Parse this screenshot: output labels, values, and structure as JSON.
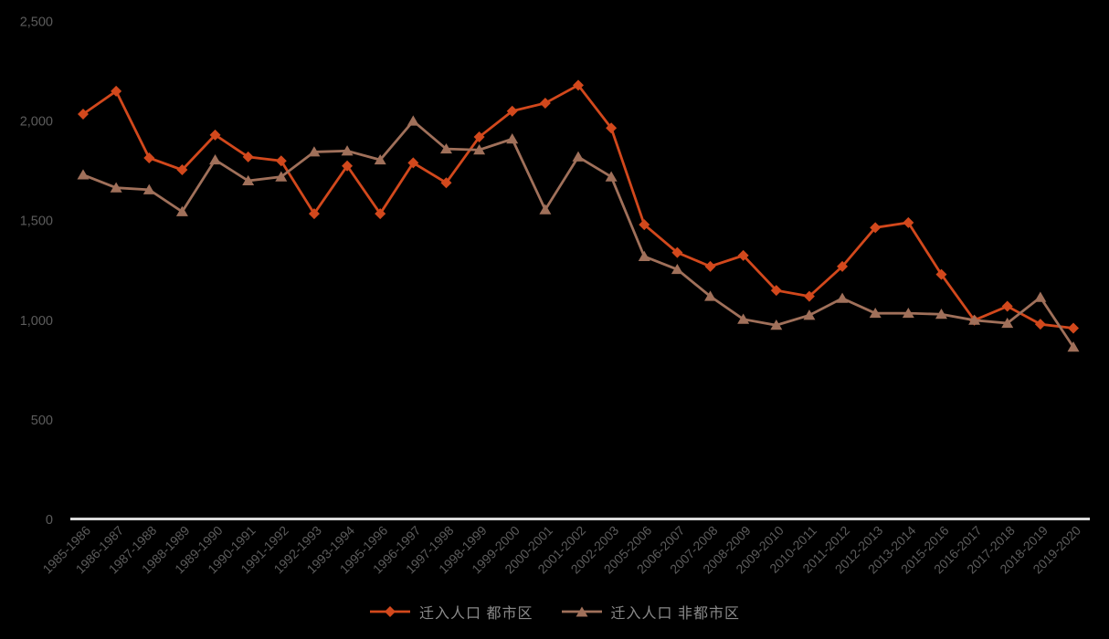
{
  "chart_data": {
    "type": "line",
    "title": "",
    "categories": [
      "1985-1986",
      "1986-1987",
      "1987-1988",
      "1988-1989",
      "1989-1990",
      "1990-1991",
      "1991-1992",
      "1992-1993",
      "1993-1994",
      "1995-1996",
      "1996-1997",
      "1997-1998",
      "1998-1999",
      "1999-2000",
      "2000-2001",
      "2001-2002",
      "2002-2003",
      "2005-2006",
      "2006-2007",
      "2007-2008",
      "2008-2009",
      "2009-2010",
      "2010-2011",
      "2011-2012",
      "2012-2013",
      "2013-2014",
      "2015-2016",
      "2016-2017",
      "2017-2018",
      "2018-2019",
      "2019-2020"
    ],
    "series": [
      {
        "name": "迁入人口 都市区",
        "marker": "diamond",
        "color": "#D2481C",
        "values": [
          2035,
          2150,
          1815,
          1755,
          1930,
          1820,
          1800,
          1535,
          1775,
          1535,
          1790,
          1690,
          1920,
          2050,
          2090,
          2180,
          1965,
          1480,
          1340,
          1270,
          1325,
          1150,
          1120,
          1270,
          1465,
          1490,
          1230,
          1000,
          1070,
          980,
          960
        ]
      },
      {
        "name": "迁入人口 非都市区",
        "marker": "triangle",
        "color": "#A0705A",
        "values": [
          1730,
          1665,
          1655,
          1545,
          1805,
          1700,
          1720,
          1845,
          1850,
          1805,
          2000,
          1860,
          1855,
          1910,
          1555,
          1820,
          1720,
          1320,
          1255,
          1120,
          1005,
          975,
          1025,
          1110,
          1035,
          1035,
          1030,
          1000,
          985,
          1115,
          865
        ]
      }
    ],
    "xlabel": "",
    "ylabel": "",
    "ylim": [
      0,
      2500
    ],
    "yticks": [
      0,
      500,
      1000,
      1500,
      2000,
      2500
    ],
    "ytick_labels": [
      "0",
      "500",
      "1,000",
      "1,500",
      "2,000",
      "2,500"
    ],
    "grid": false,
    "legend_position": "bottom",
    "background_color": "#000000",
    "axis_label_color": "#5C5C5C",
    "legend_text_color": "#8A8A8A",
    "axis_line_color": "#D9D9D9"
  }
}
